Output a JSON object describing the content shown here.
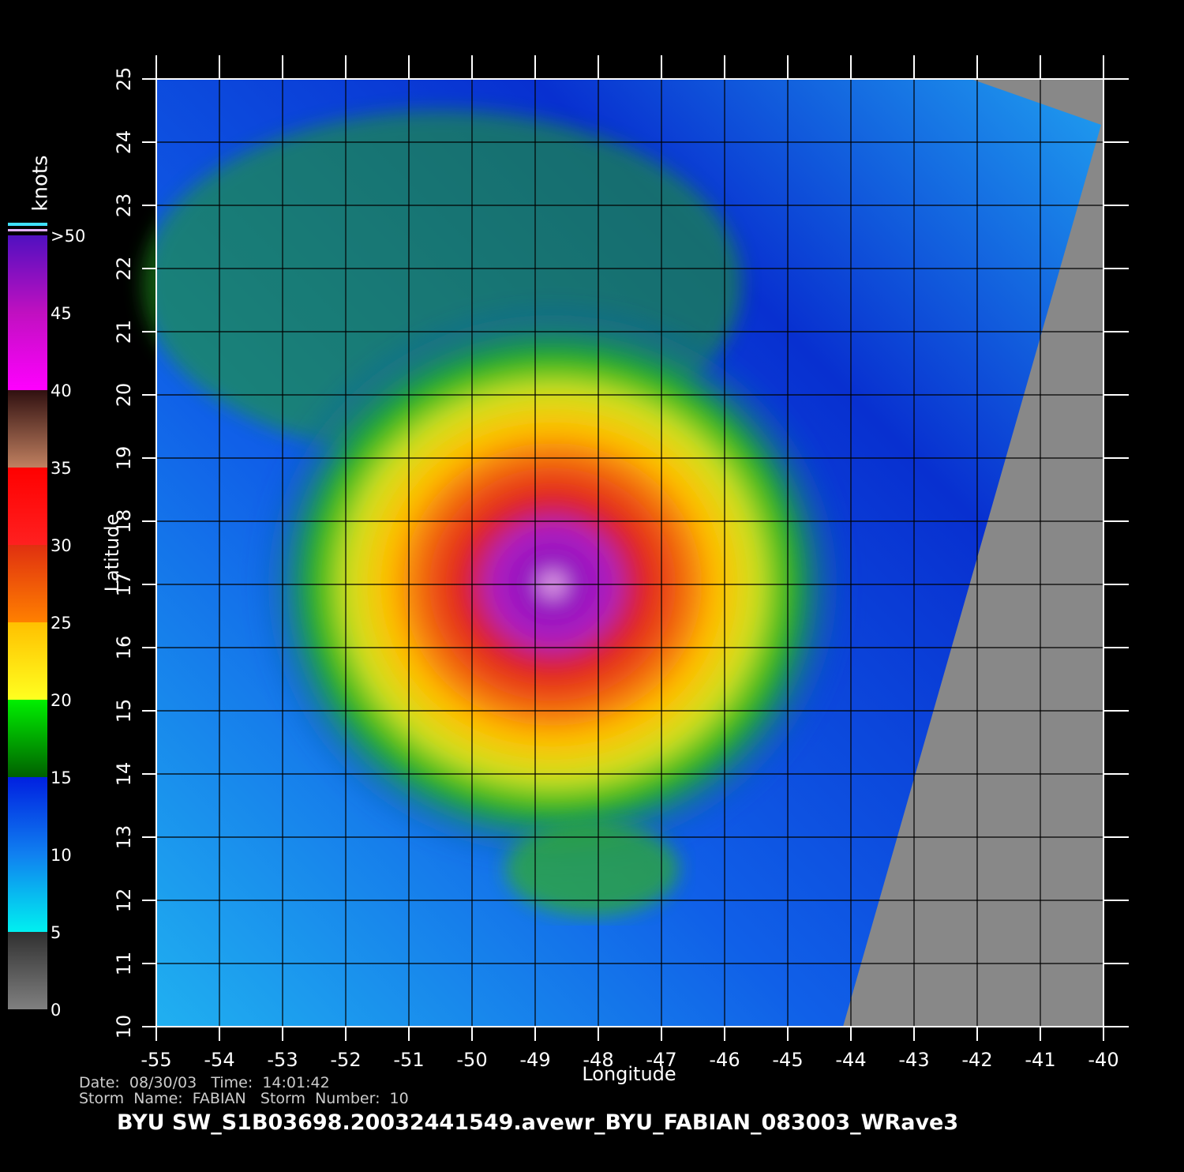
{
  "map": {
    "xlabel": "Longitude",
    "ylabel": "Latitude",
    "xlim": [
      -55,
      -40
    ],
    "ylim": [
      10,
      25
    ],
    "xticks": [
      -55,
      -54,
      -53,
      -52,
      -51,
      -50,
      -49,
      -48,
      -47,
      -46,
      -45,
      -44,
      -43,
      -42,
      -41,
      -40
    ],
    "yticks": [
      10,
      11,
      12,
      13,
      14,
      15,
      16,
      17,
      18,
      19,
      20,
      21,
      22,
      23,
      24,
      25
    ],
    "grid": true,
    "colorbar": {
      "label": "knots",
      "range": [
        0,
        50
      ],
      "ticks": [
        0,
        5,
        10,
        15,
        20,
        25,
        30,
        35,
        40,
        45,
        {
          "value": 50,
          "label": ">50"
        }
      ]
    },
    "info": [
      "Date:  08/30/03   Time:  14:01:42",
      "Storm  Name:  FABIAN   Storm  Number:  10"
    ],
    "title": "BYU  SW_S1B03698.20032441549.avewr_BYU_FABIAN_083003_WRave3"
  }
}
